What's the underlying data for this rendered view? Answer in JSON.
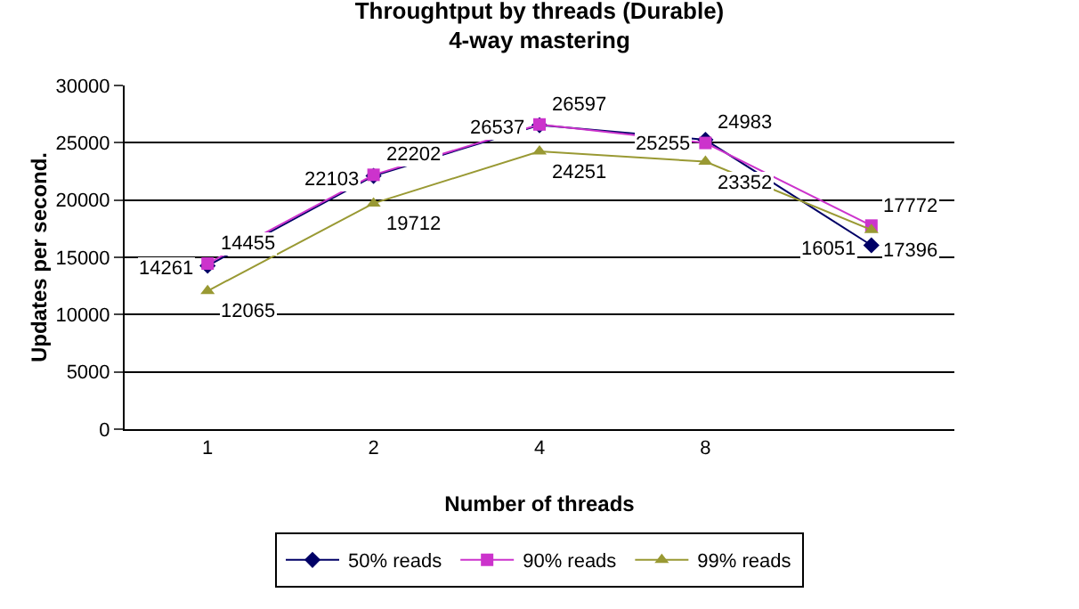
{
  "chart_data": {
    "type": "line",
    "title": "Throughtput by threads (Durable)",
    "subtitle": "4-way mastering",
    "xlabel": "Number of threads",
    "ylabel": "Updates per second.",
    "categories": [
      "1",
      "2",
      "4",
      "8",
      null
    ],
    "series": [
      {
        "name": "50% reads",
        "color": "#000066",
        "marker": "diamond",
        "values": [
          14261,
          22103,
          26537,
          25255,
          16051
        ]
      },
      {
        "name": "90% reads",
        "color": "#cc33cc",
        "marker": "square",
        "values": [
          14455,
          22202,
          26597,
          24983,
          17772
        ]
      },
      {
        "name": "99% reads",
        "color": "#999933",
        "marker": "triangle",
        "values": [
          12065,
          19712,
          24251,
          23352,
          17396
        ]
      }
    ],
    "ylim": [
      0,
      30000
    ],
    "yticks": [
      0,
      5000,
      10000,
      15000,
      20000,
      25000,
      30000
    ],
    "grid": "y",
    "legend": "bottom",
    "data_labels": true,
    "line_style": "solid"
  }
}
